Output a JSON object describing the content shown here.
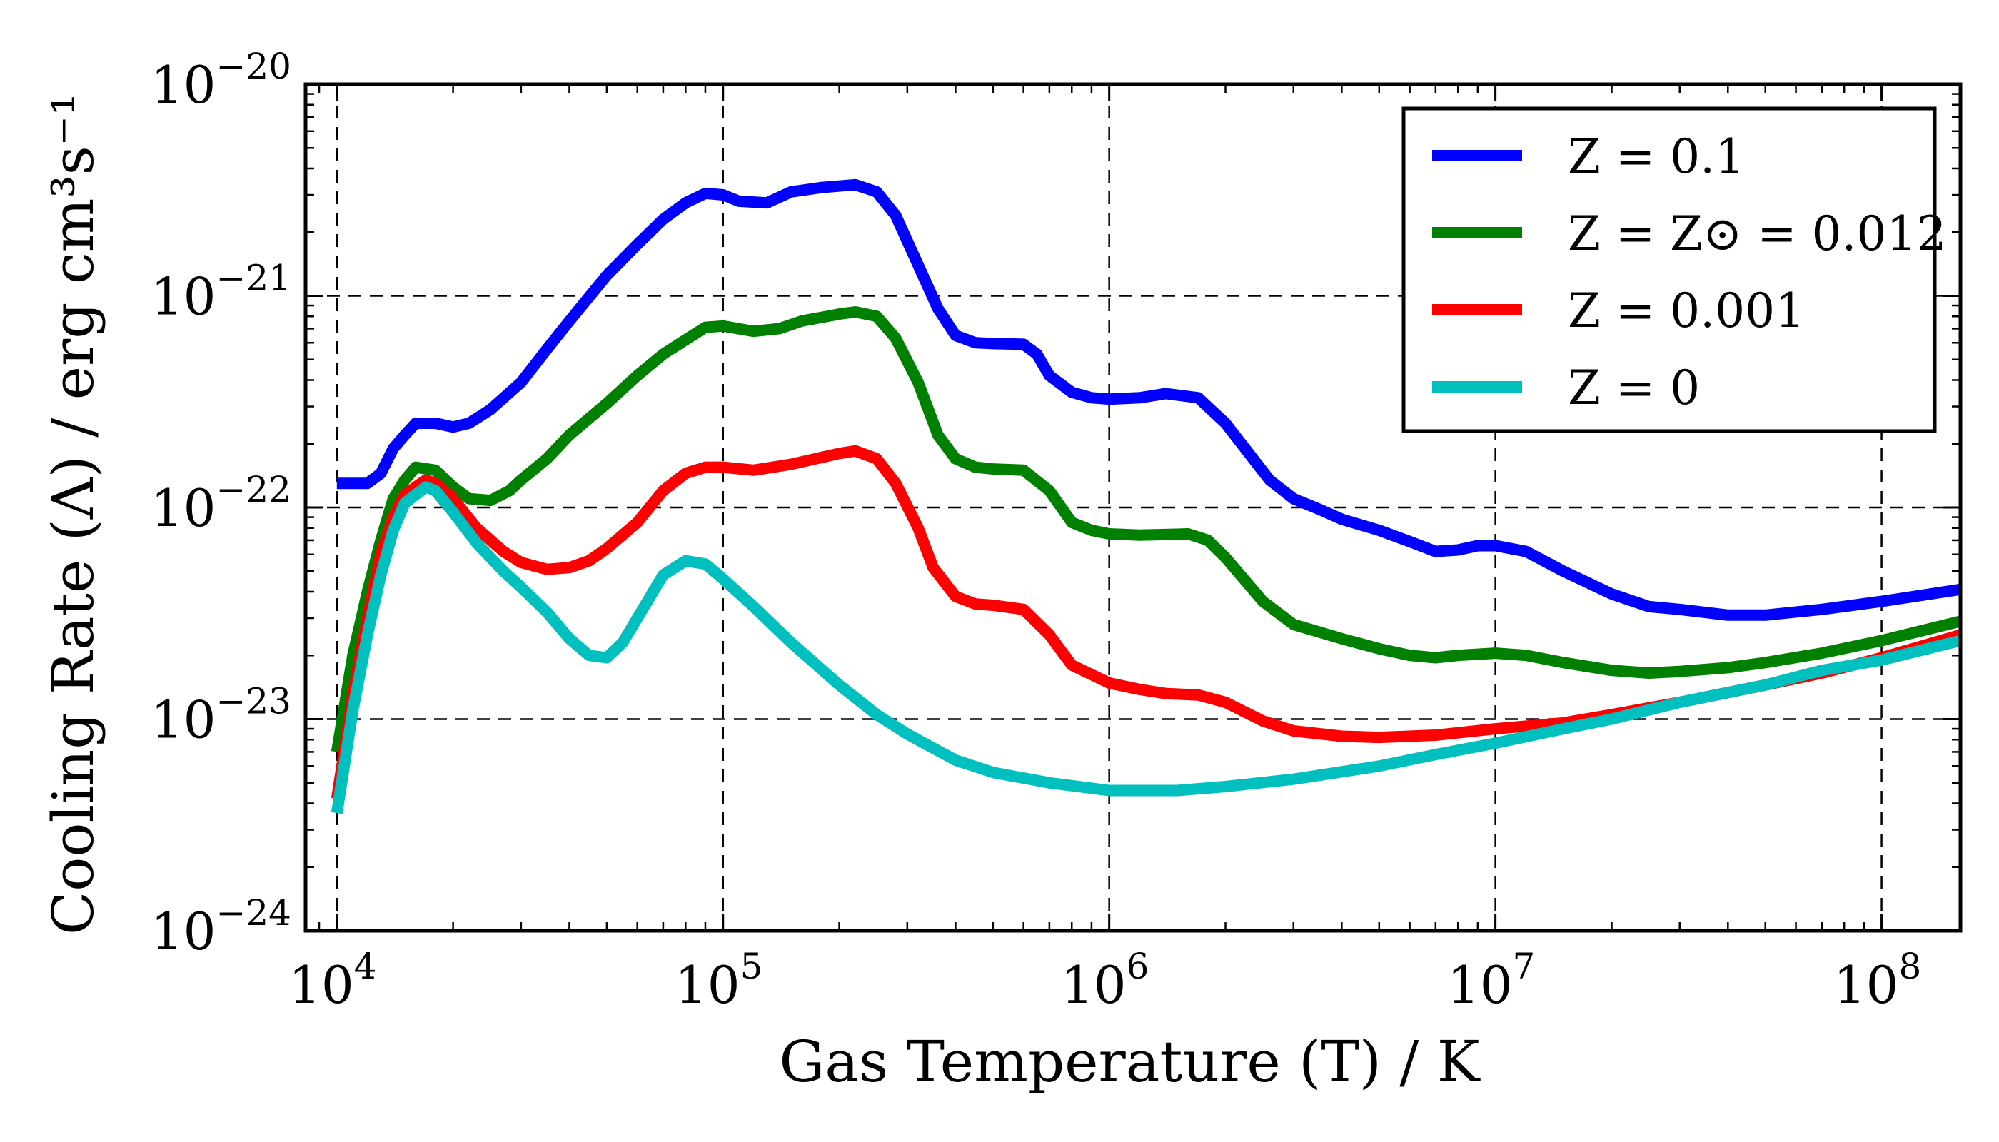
{
  "chart_data": {
    "type": "line",
    "xlabel": "Gas Temperature (T) / K",
    "ylabel": "Cooling Rate (Λ) / erg cm³s⁻¹",
    "x_scale": "log",
    "y_scale": "log",
    "xlim": [
      8300,
      160000000
    ],
    "ylim": [
      1e-24,
      1e-20
    ],
    "grid": true,
    "legend_position": "top-right",
    "x_ticks": [
      {
        "value": 10000,
        "base": "10",
        "exp": "4"
      },
      {
        "value": 100000,
        "base": "10",
        "exp": "5"
      },
      {
        "value": 1000000,
        "base": "10",
        "exp": "6"
      },
      {
        "value": 10000000,
        "base": "10",
        "exp": "7"
      },
      {
        "value": 100000000,
        "base": "10",
        "exp": "8"
      }
    ],
    "y_ticks": [
      {
        "value": 1e-24,
        "base": "10",
        "exp": "−24"
      },
      {
        "value": 1e-23,
        "base": "10",
        "exp": "−23"
      },
      {
        "value": 1e-22,
        "base": "10",
        "exp": "−22"
      },
      {
        "value": 1e-21,
        "base": "10",
        "exp": "−21"
      },
      {
        "value": 1e-20,
        "base": "10",
        "exp": "−20"
      }
    ],
    "series": [
      {
        "name": "Z = 0.1",
        "color": "#0000ff",
        "points": [
          [
            10000,
            1.3e-22
          ],
          [
            12000,
            1.3e-22
          ],
          [
            13000,
            1.45e-22
          ],
          [
            14000,
            1.9e-22
          ],
          [
            15000,
            2.2e-22
          ],
          [
            16000,
            2.5e-22
          ],
          [
            18000,
            2.5e-22
          ],
          [
            20000,
            2.4e-22
          ],
          [
            22000,
            2.5e-22
          ],
          [
            25000,
            2.9e-22
          ],
          [
            30000,
            3.9e-22
          ],
          [
            35000,
            5.6e-22
          ],
          [
            40000,
            7.6e-22
          ],
          [
            50000,
            1.25e-21
          ],
          [
            60000,
            1.75e-21
          ],
          [
            70000,
            2.3e-21
          ],
          [
            80000,
            2.75e-21
          ],
          [
            90000,
            3.05e-21
          ],
          [
            100000,
            3e-21
          ],
          [
            110000,
            2.8e-21
          ],
          [
            130000,
            2.75e-21
          ],
          [
            150000,
            3.1e-21
          ],
          [
            180000,
            3.25e-21
          ],
          [
            220000,
            3.35e-21
          ],
          [
            250000,
            3.1e-21
          ],
          [
            280000,
            2.4e-21
          ],
          [
            320000,
            1.4e-21
          ],
          [
            360000,
            8.7e-22
          ],
          [
            400000,
            6.5e-22
          ],
          [
            450000,
            6e-22
          ],
          [
            500000,
            5.95e-22
          ],
          [
            600000,
            5.9e-22
          ],
          [
            650000,
            5.3e-22
          ],
          [
            700000,
            4.2e-22
          ],
          [
            800000,
            3.5e-22
          ],
          [
            900000,
            3.3e-22
          ],
          [
            1000000,
            3.25e-22
          ],
          [
            1200000,
            3.3e-22
          ],
          [
            1400000,
            3.45e-22
          ],
          [
            1700000,
            3.3e-22
          ],
          [
            2000000,
            2.5e-22
          ],
          [
            2300000,
            1.8e-22
          ],
          [
            2600000,
            1.35e-22
          ],
          [
            3000000,
            1.1e-22
          ],
          [
            3500000,
            9.8e-23
          ],
          [
            4000000,
            8.8e-23
          ],
          [
            5000000,
            7.8e-23
          ],
          [
            6000000,
            6.9e-23
          ],
          [
            7000000,
            6.2e-23
          ],
          [
            8000000,
            6.3e-23
          ],
          [
            9000000,
            6.6e-23
          ],
          [
            10000000,
            6.6e-23
          ],
          [
            12000000,
            6.2e-23
          ],
          [
            15000000,
            5e-23
          ],
          [
            20000000,
            3.9e-23
          ],
          [
            25000000,
            3.4e-23
          ],
          [
            30000000,
            3.3e-23
          ],
          [
            40000000,
            3.1e-23
          ],
          [
            50000000,
            3.1e-23
          ],
          [
            70000000,
            3.3e-23
          ],
          [
            100000000,
            3.6e-23
          ],
          [
            160000000,
            4.1e-23
          ]
        ]
      },
      {
        "name": "Z = Z⊙ = 0.012",
        "color": "#008000",
        "points": [
          [
            10000,
            7e-24
          ],
          [
            11000,
            2e-23
          ],
          [
            12000,
            4e-23
          ],
          [
            13000,
            7e-23
          ],
          [
            14000,
            1.1e-22
          ],
          [
            15000,
            1.35e-22
          ],
          [
            16000,
            1.55e-22
          ],
          [
            18000,
            1.5e-22
          ],
          [
            20000,
            1.25e-22
          ],
          [
            22000,
            1.1e-22
          ],
          [
            25000,
            1.08e-22
          ],
          [
            28000,
            1.2e-22
          ],
          [
            30000,
            1.35e-22
          ],
          [
            35000,
            1.7e-22
          ],
          [
            40000,
            2.2e-22
          ],
          [
            50000,
            3.1e-22
          ],
          [
            60000,
            4.2e-22
          ],
          [
            70000,
            5.3e-22
          ],
          [
            80000,
            6.2e-22
          ],
          [
            90000,
            7.1e-22
          ],
          [
            100000,
            7.2e-22
          ],
          [
            120000,
            6.8e-22
          ],
          [
            140000,
            7e-22
          ],
          [
            160000,
            7.6e-22
          ],
          [
            200000,
            8.2e-22
          ],
          [
            220000,
            8.4e-22
          ],
          [
            250000,
            8e-22
          ],
          [
            280000,
            6.3e-22
          ],
          [
            320000,
            3.9e-22
          ],
          [
            360000,
            2.2e-22
          ],
          [
            400000,
            1.7e-22
          ],
          [
            450000,
            1.55e-22
          ],
          [
            500000,
            1.52e-22
          ],
          [
            600000,
            1.5e-22
          ],
          [
            700000,
            1.2e-22
          ],
          [
            800000,
            8.5e-23
          ],
          [
            900000,
            7.8e-23
          ],
          [
            1000000,
            7.5e-23
          ],
          [
            1200000,
            7.4e-23
          ],
          [
            1600000,
            7.5e-23
          ],
          [
            1800000,
            7e-23
          ],
          [
            2000000,
            5.8e-23
          ],
          [
            2500000,
            3.6e-23
          ],
          [
            3000000,
            2.8e-23
          ],
          [
            4000000,
            2.4e-23
          ],
          [
            5000000,
            2.15e-23
          ],
          [
            6000000,
            2e-23
          ],
          [
            7000000,
            1.95e-23
          ],
          [
            8000000,
            2e-23
          ],
          [
            10000000,
            2.05e-23
          ],
          [
            12000000,
            2e-23
          ],
          [
            15000000,
            1.85e-23
          ],
          [
            20000000,
            1.7e-23
          ],
          [
            25000000,
            1.65e-23
          ],
          [
            30000000,
            1.68e-23
          ],
          [
            40000000,
            1.75e-23
          ],
          [
            50000000,
            1.85e-23
          ],
          [
            70000000,
            2.05e-23
          ],
          [
            100000000,
            2.35e-23
          ],
          [
            160000000,
            2.9e-23
          ]
        ]
      },
      {
        "name": "Z = 0.001",
        "color": "#ff0000",
        "points": [
          [
            10000,
            4.2e-24
          ],
          [
            11000,
            1.3e-23
          ],
          [
            12000,
            3e-23
          ],
          [
            13000,
            6e-23
          ],
          [
            14000,
            9e-23
          ],
          [
            15000,
            1.15e-22
          ],
          [
            17000,
            1.35e-22
          ],
          [
            18000,
            1.3e-22
          ],
          [
            20000,
            1.1e-22
          ],
          [
            23000,
            8e-23
          ],
          [
            27000,
            6.2e-23
          ],
          [
            30000,
            5.5e-23
          ],
          [
            35000,
            5.1e-23
          ],
          [
            40000,
            5.2e-23
          ],
          [
            45000,
            5.6e-23
          ],
          [
            50000,
            6.4e-23
          ],
          [
            60000,
            8.5e-23
          ],
          [
            70000,
            1.2e-22
          ],
          [
            80000,
            1.45e-22
          ],
          [
            90000,
            1.55e-22
          ],
          [
            100000,
            1.55e-22
          ],
          [
            120000,
            1.5e-22
          ],
          [
            150000,
            1.6e-22
          ],
          [
            200000,
            1.8e-22
          ],
          [
            220000,
            1.85e-22
          ],
          [
            250000,
            1.7e-22
          ],
          [
            280000,
            1.3e-22
          ],
          [
            320000,
            8e-23
          ],
          [
            350000,
            5.2e-23
          ],
          [
            400000,
            3.8e-23
          ],
          [
            450000,
            3.5e-23
          ],
          [
            500000,
            3.45e-23
          ],
          [
            600000,
            3.3e-23
          ],
          [
            700000,
            2.5e-23
          ],
          [
            800000,
            1.8e-23
          ],
          [
            1000000,
            1.48e-23
          ],
          [
            1200000,
            1.38e-23
          ],
          [
            1400000,
            1.32e-23
          ],
          [
            1700000,
            1.3e-23
          ],
          [
            2000000,
            1.2e-23
          ],
          [
            2500000,
            9.8e-24
          ],
          [
            3000000,
            8.8e-24
          ],
          [
            4000000,
            8.3e-24
          ],
          [
            5000000,
            8.2e-24
          ],
          [
            7000000,
            8.4e-24
          ],
          [
            10000000,
            9e-24
          ],
          [
            15000000,
            9.6e-24
          ],
          [
            20000000,
            1.05e-23
          ],
          [
            30000000,
            1.2e-23
          ],
          [
            50000000,
            1.45e-23
          ],
          [
            70000000,
            1.65e-23
          ],
          [
            100000000,
            1.95e-23
          ],
          [
            160000000,
            2.5e-23
          ]
        ]
      },
      {
        "name": "Z = 0",
        "color": "#00bfbf",
        "points": [
          [
            10000,
            3.6e-24
          ],
          [
            11000,
            1.1e-23
          ],
          [
            12000,
            2.5e-23
          ],
          [
            13000,
            4.8e-23
          ],
          [
            14000,
            7.8e-23
          ],
          [
            15000,
            1.05e-22
          ],
          [
            17000,
            1.25e-22
          ],
          [
            18000,
            1.2e-22
          ],
          [
            20000,
            9.5e-23
          ],
          [
            23000,
            6.8e-23
          ],
          [
            27000,
            5e-23
          ],
          [
            30000,
            4.2e-23
          ],
          [
            35000,
            3.2e-23
          ],
          [
            40000,
            2.4e-23
          ],
          [
            45000,
            2e-23
          ],
          [
            50000,
            1.95e-23
          ],
          [
            55000,
            2.3e-23
          ],
          [
            60000,
            3e-23
          ],
          [
            70000,
            4.8e-23
          ],
          [
            80000,
            5.6e-23
          ],
          [
            90000,
            5.4e-23
          ],
          [
            100000,
            4.6e-23
          ],
          [
            120000,
            3.4e-23
          ],
          [
            150000,
            2.3e-23
          ],
          [
            200000,
            1.45e-23
          ],
          [
            250000,
            1.05e-23
          ],
          [
            300000,
            8.5e-24
          ],
          [
            400000,
            6.4e-24
          ],
          [
            500000,
            5.6e-24
          ],
          [
            700000,
            5e-24
          ],
          [
            1000000,
            4.6e-24
          ],
          [
            1500000,
            4.6e-24
          ],
          [
            2000000,
            4.8e-24
          ],
          [
            3000000,
            5.2e-24
          ],
          [
            5000000,
            6e-24
          ],
          [
            7000000,
            6.8e-24
          ],
          [
            10000000,
            7.7e-24
          ],
          [
            15000000,
            9e-24
          ],
          [
            20000000,
            1e-23
          ],
          [
            30000000,
            1.2e-23
          ],
          [
            50000000,
            1.45e-23
          ],
          [
            70000000,
            1.7e-23
          ],
          [
            100000000,
            1.9e-23
          ],
          [
            160000000,
            2.35e-23
          ]
        ]
      }
    ]
  }
}
